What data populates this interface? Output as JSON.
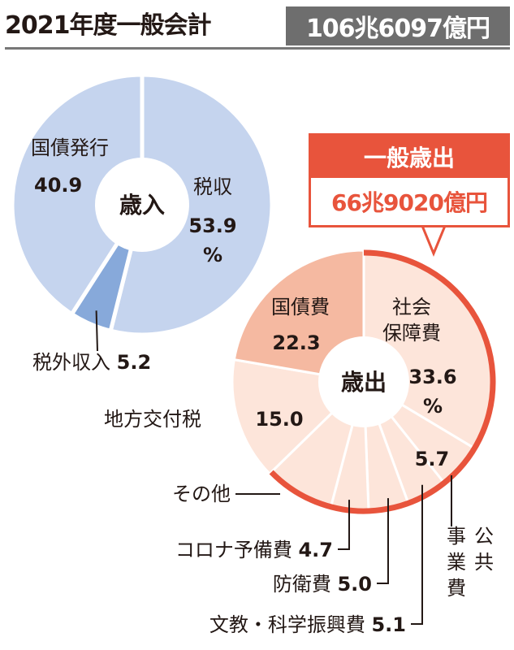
{
  "title": "2021年度一般会計",
  "total": "106兆6097億円",
  "callout": {
    "head": "一般歳出",
    "amount": "66兆9020億円"
  },
  "chart_data": [
    {
      "type": "pie",
      "title": "歳入",
      "unit": "%",
      "slices": [
        {
          "name": "税収",
          "value": 53.9,
          "value_text": "53.9",
          "unit_text": "%",
          "color": "#c5d4ee"
        },
        {
          "name": "税外収入",
          "value": 5.2,
          "value_text": "5.2",
          "color": "#87a9da"
        },
        {
          "name": "国債発行",
          "value": 40.9,
          "value_text": "40.9",
          "color": "#c5d4ee"
        }
      ]
    },
    {
      "type": "pie",
      "title": "歳出",
      "unit": "%",
      "slices": [
        {
          "name": "社会保障費",
          "name_lines": [
            "社会",
            "保障費"
          ],
          "value": 33.6,
          "value_text": "33.6",
          "unit_text": "%",
          "color": "#fde5da"
        },
        {
          "name": "公共事業費",
          "name_lines": [
            "公共",
            "事業費"
          ],
          "value": 5.7,
          "value_text": "5.7",
          "color": "#fde5da"
        },
        {
          "name": "文教・科学振興費",
          "value": 5.1,
          "value_text": "5.1",
          "color": "#fde5da"
        },
        {
          "name": "防衛費",
          "value": 5.0,
          "value_text": "5.0",
          "color": "#fde5da"
        },
        {
          "name": "コロナ予備費",
          "value": 4.7,
          "value_text": "4.7",
          "color": "#fde5da"
        },
        {
          "name": "その他",
          "value": 8.6,
          "color": "#fde5da"
        },
        {
          "name": "地方交付税",
          "value": 15.0,
          "value_text": "15.0",
          "color": "#fde5da"
        },
        {
          "name": "国債費",
          "value": 22.3,
          "value_text": "22.3",
          "color": "#f5b9a1"
        }
      ],
      "highlight_arc": [
        "社会保障費",
        "公共事業費",
        "文教・科学振興費",
        "防衛費",
        "コロナ予備費",
        "その他"
      ],
      "highlight_color": "#e8543c"
    }
  ]
}
